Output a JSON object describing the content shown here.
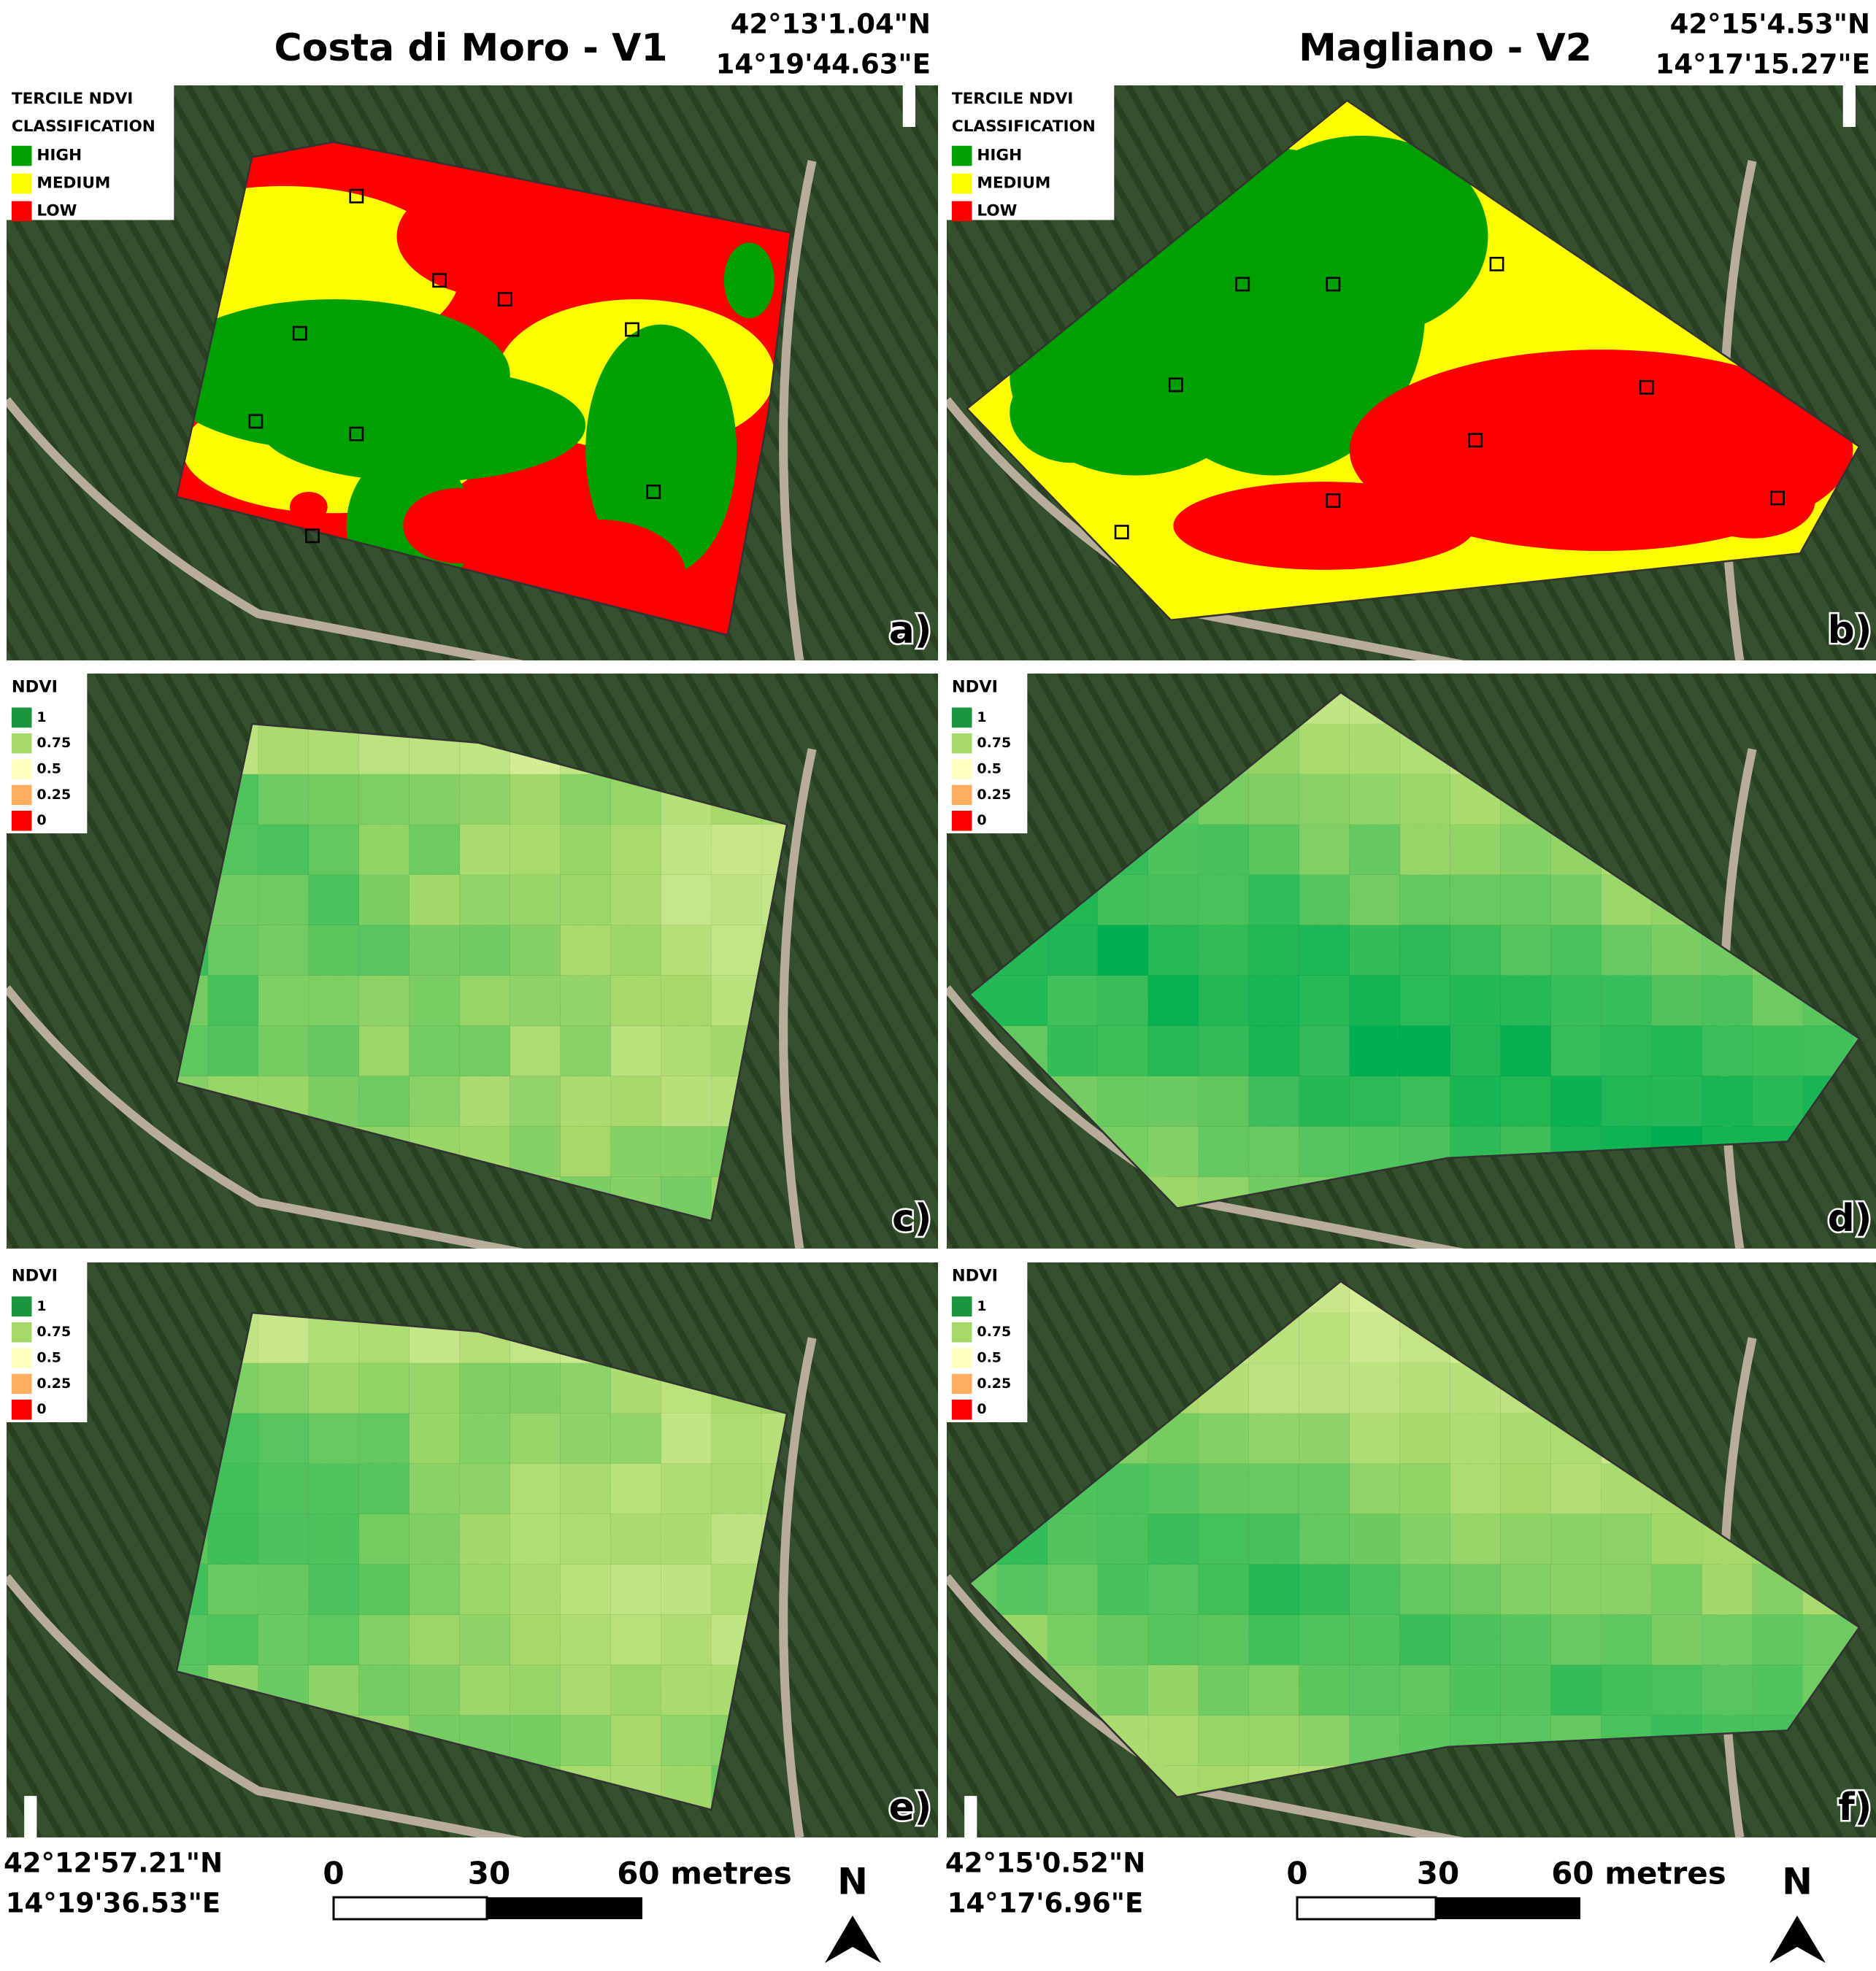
{
  "titles": [
    "Costa di Moro - V1",
    "Magliano - V2"
  ],
  "coords_top": [
    [
      "42°13'1.04\"N",
      "14°19'44.63\"E"
    ],
    [
      "42°15'4.53\"N",
      "14°17'15.27\"E"
    ]
  ],
  "coords_bottom": [
    [
      "42°12'57.21\"N",
      "14°19'36.53\"E"
    ],
    [
      "42°15'0.52\"N",
      "14°17'6.96\"E"
    ]
  ],
  "panels": [
    {
      "label": "a)",
      "legend": {
        "title": [
          "TERCILE NDVI",
          "CLASSIFICATION"
        ],
        "items": [
          "HIGH",
          "MEDIUM",
          "LOW"
        ]
      }
    },
    {
      "label": "b)",
      "legend": {
        "title": [
          "TERCILE NDVI",
          "CLASSIFICATION"
        ],
        "items": [
          "HIGH",
          "MEDIUM",
          "LOW"
        ]
      }
    },
    {
      "label": "c)",
      "legend": {
        "title": [
          "NDVI"
        ],
        "items": [
          "1",
          "0.75",
          "0.5",
          "0.25",
          "0"
        ]
      }
    },
    {
      "label": "d)",
      "legend": {
        "title": [
          "NDVI"
        ],
        "items": [
          "1",
          "0.75",
          "0.5",
          "0.25",
          "0"
        ]
      }
    },
    {
      "label": "e)",
      "legend": {
        "title": [
          "NDVI"
        ],
        "items": [
          "1",
          "0.75",
          "0.5",
          "0.25",
          "0"
        ]
      }
    },
    {
      "label": "f)",
      "legend": {
        "title": [
          "NDVI"
        ],
        "items": [
          "1",
          "0.75",
          "0.5",
          "0.25",
          "0"
        ]
      }
    }
  ],
  "scale_bars": [
    [
      "0",
      "30",
      "60 metres"
    ],
    [
      "0",
      "30",
      "60 metres"
    ]
  ],
  "north": [
    "N",
    "N"
  ]
}
